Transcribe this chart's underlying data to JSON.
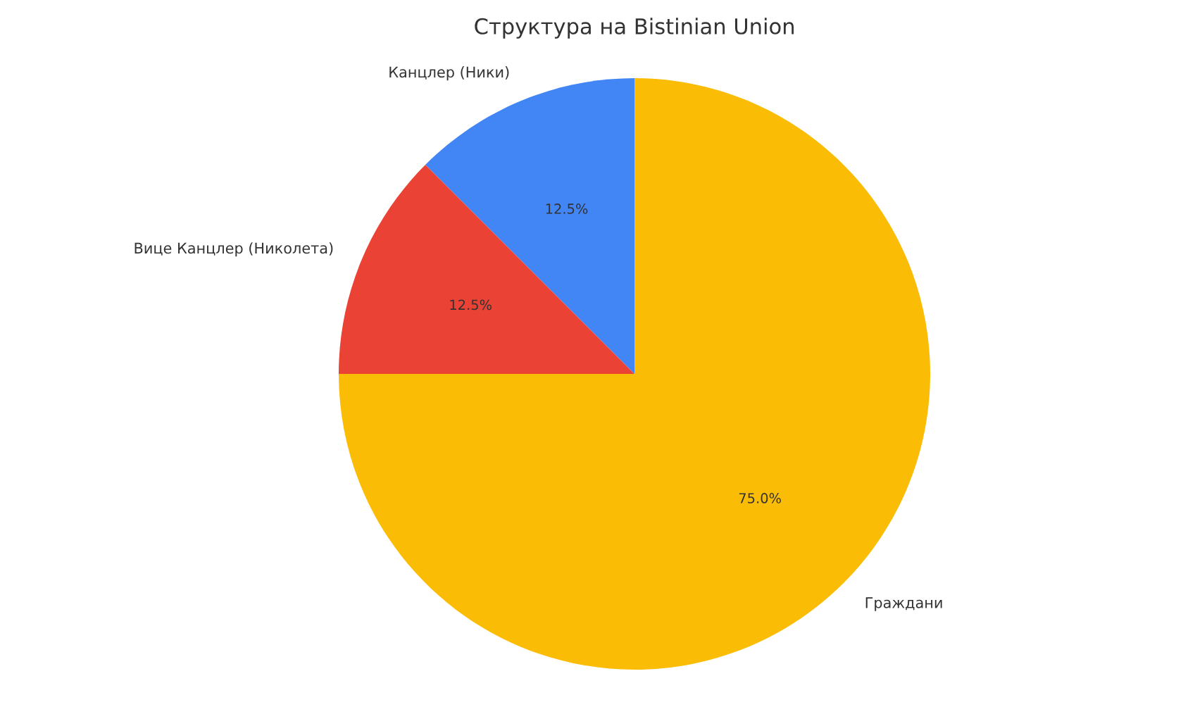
{
  "chart_data": {
    "type": "pie",
    "title": "Структура на Bistinian Union",
    "categories": [
      "Канцлер (Ники)",
      "Вице Канцлер (Николета)",
      "Граждани"
    ],
    "values": [
      12.5,
      12.5,
      75.0
    ],
    "colors": [
      "#4285f4",
      "#ea4335",
      "#fbbc05"
    ],
    "value_labels": [
      "12.5%",
      "12.5%",
      "75.0%"
    ]
  }
}
